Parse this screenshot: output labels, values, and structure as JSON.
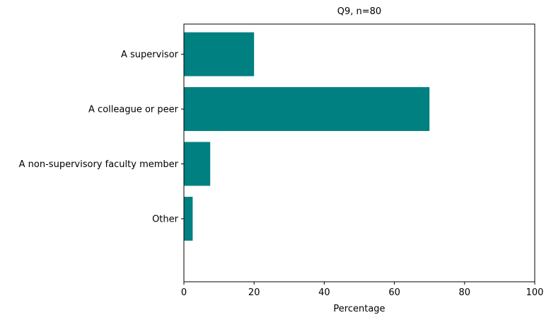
{
  "chart_data": {
    "type": "bar",
    "orientation": "horizontal",
    "title": "Q9, n=80",
    "xlabel": "Percentage",
    "ylabel": "",
    "categories": [
      "A supervisor",
      "A colleague or peer",
      "A non-supervisory faculty member",
      "Other"
    ],
    "values": [
      20.0,
      70.0,
      7.5,
      2.5
    ],
    "xlim": [
      0,
      100
    ],
    "xticks": [
      "0",
      "20",
      "40",
      "60",
      "80",
      "100"
    ],
    "grid": false,
    "legend": "none",
    "bar_color": "#008080"
  }
}
